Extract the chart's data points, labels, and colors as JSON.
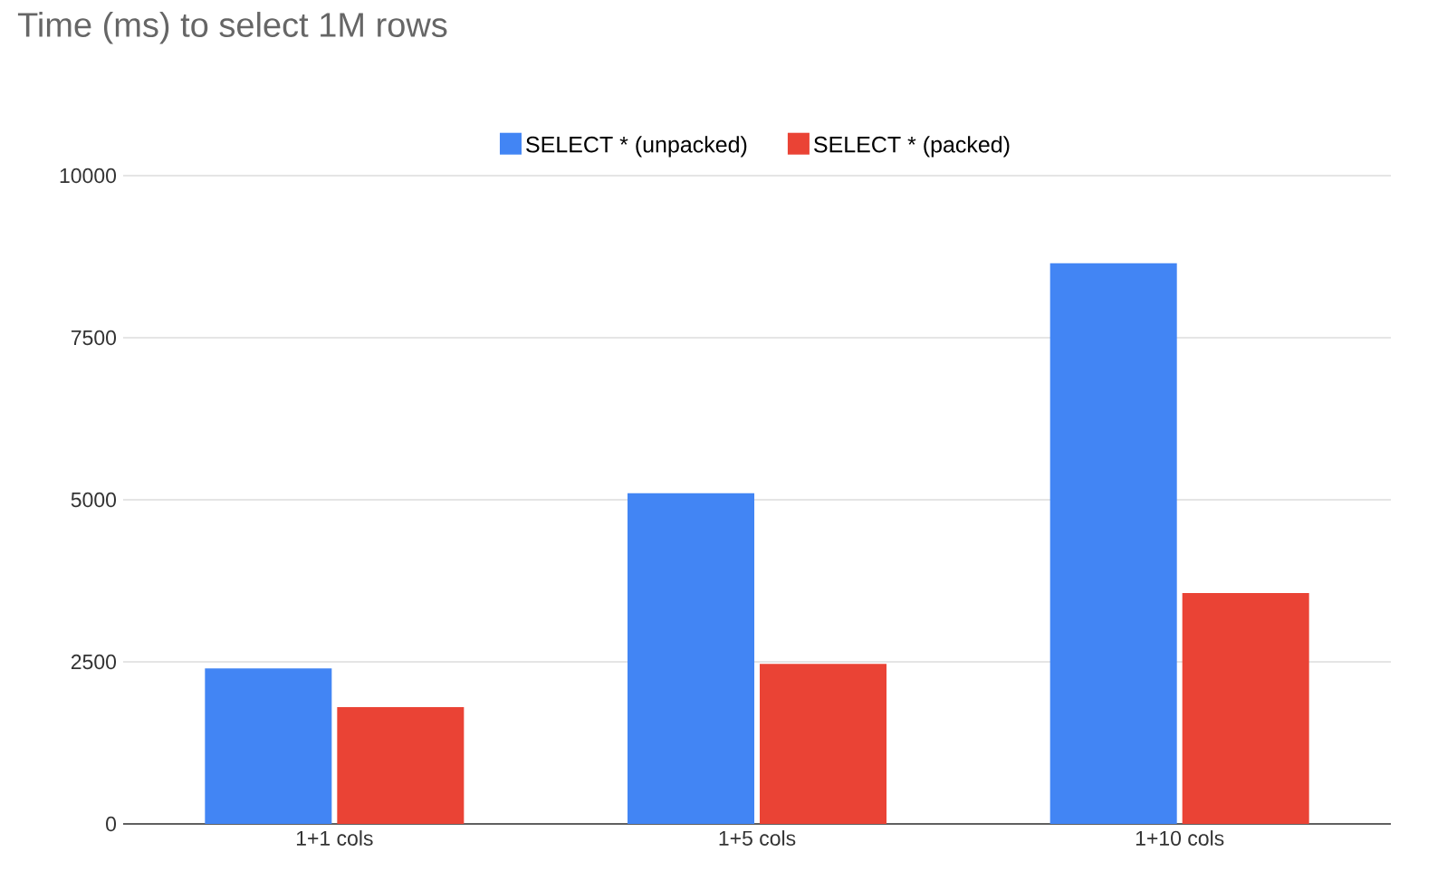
{
  "chart_data": {
    "type": "bar",
    "title": "Time (ms) to select 1M rows",
    "categories": [
      "1+1 cols",
      "1+5 cols",
      "1+10 cols"
    ],
    "series": [
      {
        "name": "SELECT * (unpacked)",
        "color": "#4285f4",
        "values": [
          2400,
          5100,
          8650
        ]
      },
      {
        "name": "SELECT * (packed)",
        "color": "#ea4335",
        "values": [
          1800,
          2470,
          3560
        ]
      }
    ],
    "ylim": [
      0,
      10000
    ],
    "yticks": [
      0,
      2500,
      5000,
      7500,
      10000
    ],
    "grid": "y",
    "legend": "top"
  }
}
